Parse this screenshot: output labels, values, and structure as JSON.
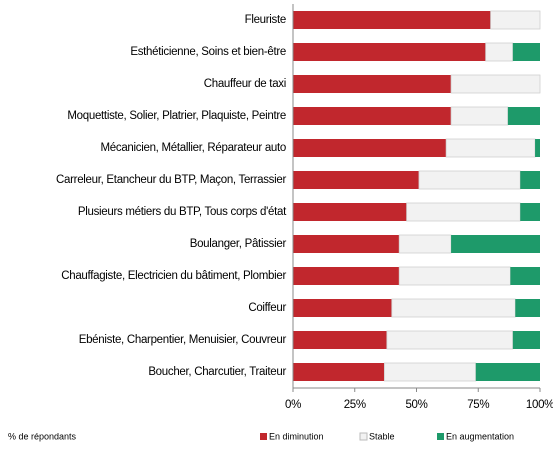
{
  "chart_data": {
    "type": "stacked-bar-horizontal",
    "categories": [
      "Fleuriste",
      "Esthéticienne, Soins et bien-être",
      "Chauffeur de taxi",
      "Moquettiste, Solier, Platrier, Plaquiste, Peintre",
      "Mécanicien, Métallier, Réparateur auto",
      "Carreleur, Etancheur du BTP, Maçon, Terrassier",
      "Plusieurs métiers du BTP, Tous corps d'état",
      "Boulanger, Pâtissier",
      "Chauffagiste, Electricien du bâtiment, Plombier",
      "Coiffeur",
      "Ebéniste, Charpentier, Menuisier, Couvreur",
      "Boucher, Charcutier, Traiteur"
    ],
    "series": [
      {
        "name": "En diminution",
        "color": "#c1272d",
        "values": [
          80,
          78,
          64,
          64,
          62,
          51,
          46,
          43,
          43,
          40,
          38,
          37
        ]
      },
      {
        "name": "Stable",
        "color": "#f2f2f2",
        "values": [
          20,
          11,
          36,
          23,
          36,
          41,
          46,
          21,
          45,
          50,
          51,
          37
        ]
      },
      {
        "name": "En augmentation",
        "color": "#1e9a6a",
        "values": [
          0,
          11,
          0,
          13,
          2,
          8,
          8,
          36,
          12,
          10,
          11,
          26
        ]
      }
    ],
    "xlim": [
      0,
      100
    ],
    "xticks": [
      {
        "value": 0,
        "label": "0%"
      },
      {
        "value": 25,
        "label": "25%"
      },
      {
        "value": 50,
        "label": "50%"
      },
      {
        "value": 75,
        "label": "75%"
      },
      {
        "value": 100,
        "label": "100%"
      }
    ],
    "footnote": "% de répondants",
    "legend": "bottom"
  }
}
